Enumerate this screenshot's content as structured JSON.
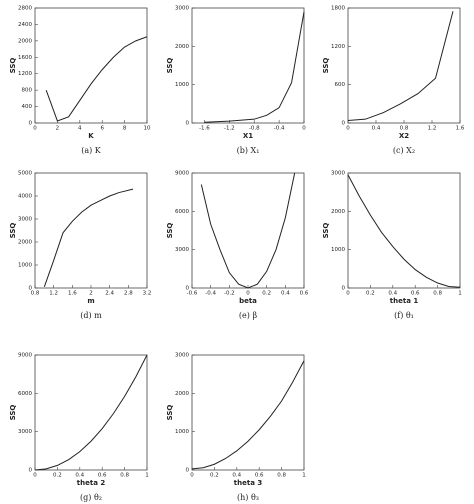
{
  "chart_data": [
    {
      "type": "line",
      "caption": "(a) K",
      "xlabel": "K",
      "ylabel": "SSQ",
      "x": [
        1,
        2,
        3,
        4,
        5,
        6,
        7,
        8,
        9,
        10
      ],
      "values": [
        800,
        50,
        150,
        550,
        950,
        1300,
        1600,
        1850,
        2000,
        2100
      ],
      "color": "#222222",
      "xlim": [
        0,
        10
      ],
      "xticks": [
        0,
        2,
        4,
        6,
        8,
        10
      ],
      "ylim": [
        0,
        2800
      ],
      "yticks": [
        0,
        400,
        800,
        1200,
        1600,
        2000,
        2400,
        2800
      ]
    },
    {
      "type": "line",
      "caption": "(b) X₁",
      "xlabel": "X1",
      "ylabel": "SSQ",
      "x": [
        -1.6,
        -1.2,
        -0.8,
        -0.6,
        -0.4,
        -0.2,
        0
      ],
      "values": [
        20,
        50,
        100,
        200,
        400,
        1050,
        2900
      ],
      "color": "#222222",
      "xlim": [
        -1.8,
        0
      ],
      "xticks": [
        -1.6,
        -1.2,
        -0.8,
        -0.4,
        0
      ],
      "ylim": [
        0,
        3000
      ],
      "yticks": [
        0,
        1000,
        2000,
        3000
      ]
    },
    {
      "type": "line",
      "caption": "(c) X₂",
      "xlabel": "X2",
      "ylabel": "SSQ",
      "x": [
        0,
        0.25,
        0.5,
        0.75,
        1.0,
        1.25,
        1.5
      ],
      "values": [
        40,
        60,
        160,
        300,
        460,
        700,
        1750
      ],
      "color": "#222222",
      "xlim": [
        0,
        1.6
      ],
      "xticks": [
        0,
        0.4,
        0.8,
        1.2,
        1.6
      ],
      "ylim": [
        0,
        1800
      ],
      "yticks": [
        0,
        600,
        1200,
        1800
      ]
    },
    {
      "type": "line",
      "caption": "(d) m",
      "xlabel": "m",
      "ylabel": "SSQ",
      "x": [
        1.0,
        1.2,
        1.4,
        1.6,
        1.8,
        2.0,
        2.2,
        2.4,
        2.6,
        2.8,
        2.9
      ],
      "values": [
        50,
        1200,
        2400,
        2900,
        3300,
        3600,
        3800,
        4000,
        4150,
        4250,
        4300
      ],
      "color": "#222222",
      "xlim": [
        0.8,
        3.2
      ],
      "xticks": [
        0.8,
        1.2,
        1.6,
        2,
        2.4,
        2.8,
        3.2
      ],
      "ylim": [
        0,
        5000
      ],
      "yticks": [
        0,
        1000,
        2000,
        3000,
        4000,
        5000
      ]
    },
    {
      "type": "line",
      "caption": "(e) β",
      "xlabel": "beta",
      "ylabel": "SSQ",
      "x": [
        -0.5,
        -0.4,
        -0.3,
        -0.2,
        -0.1,
        0,
        0.1,
        0.2,
        0.3,
        0.4,
        0.5
      ],
      "values": [
        8100,
        5000,
        3000,
        1200,
        300,
        0,
        300,
        1300,
        3000,
        5500,
        9000
      ],
      "color": "#222222",
      "xlim": [
        -0.6,
        0.6
      ],
      "xticks": [
        -0.6,
        -0.4,
        -0.2,
        0,
        0.2,
        0.4,
        0.6
      ],
      "ylim": [
        0,
        9000
      ],
      "yticks": [
        0,
        3000,
        6000,
        9000
      ]
    },
    {
      "type": "line",
      "caption": "(f) θ₁",
      "xlabel": "theta 1",
      "ylabel": "SSQ",
      "x": [
        0,
        0.1,
        0.2,
        0.3,
        0.4,
        0.5,
        0.6,
        0.7,
        0.8,
        0.9,
        1
      ],
      "values": [
        2950,
        2400,
        1900,
        1450,
        1080,
        750,
        480,
        280,
        130,
        40,
        20
      ],
      "color": "#222222",
      "xlim": [
        0,
        1
      ],
      "xticks": [
        0,
        0.2,
        0.4,
        0.6,
        0.8,
        1
      ],
      "ylim": [
        0,
        3000
      ],
      "yticks": [
        0,
        1000,
        2000,
        3000
      ]
    },
    {
      "type": "line",
      "caption": "(g) θ₂",
      "xlabel": "theta 2",
      "ylabel": "SSQ",
      "x": [
        0,
        0.1,
        0.2,
        0.3,
        0.4,
        0.5,
        0.6,
        0.7,
        0.8,
        0.9,
        1
      ],
      "values": [
        0,
        90,
        360,
        810,
        1440,
        2250,
        3240,
        4410,
        5760,
        7290,
        9000
      ],
      "color": "#222222",
      "xlim": [
        0,
        1
      ],
      "xticks": [
        0,
        0.2,
        0.4,
        0.6,
        0.8,
        1
      ],
      "ylim": [
        0,
        9000
      ],
      "yticks": [
        0,
        3000,
        6000,
        9000
      ]
    },
    {
      "type": "line",
      "caption": "(h) θ₃",
      "xlabel": "theta 3",
      "ylabel": "SSQ",
      "x": [
        0,
        0.1,
        0.2,
        0.3,
        0.4,
        0.5,
        0.6,
        0.7,
        0.8,
        0.9,
        1
      ],
      "values": [
        30,
        60,
        150,
        300,
        500,
        750,
        1050,
        1400,
        1800,
        2300,
        2850
      ],
      "color": "#222222",
      "xlim": [
        0,
        1
      ],
      "xticks": [
        0,
        0.2,
        0.4,
        0.6,
        0.8,
        1
      ],
      "ylim": [
        0,
        3000
      ],
      "yticks": [
        0,
        1000,
        2000,
        3000
      ]
    }
  ]
}
